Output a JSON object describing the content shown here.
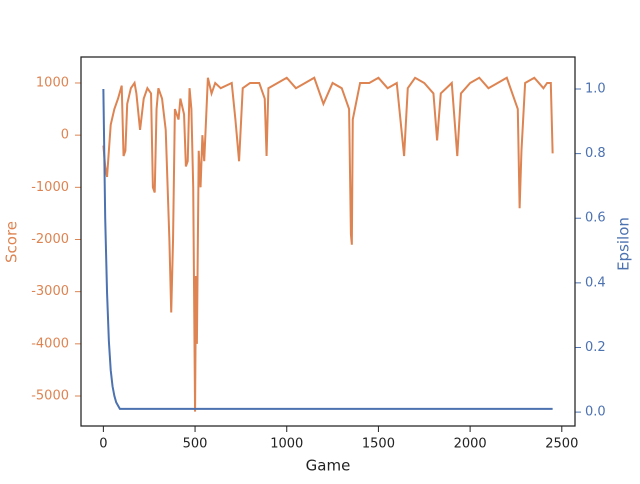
{
  "chart_data": {
    "type": "line",
    "xlabel": "Game",
    "ylabel": "Score",
    "y2label": "Epsilon",
    "xlim": [
      -122,
      2572
    ],
    "ylim": [
      -5575,
      1498
    ],
    "y2lim": [
      -0.043,
      1.099
    ],
    "xticks": [
      0,
      500,
      1000,
      1500,
      2000,
      2500
    ],
    "yticks": [
      -5000,
      -4000,
      -3000,
      -2000,
      -1000,
      0,
      1000
    ],
    "y2ticks": [
      {
        "value": 0,
        "label": "0.0"
      },
      0.2,
      0.4,
      0.6,
      0.8,
      {
        "value": 1,
        "label": "1.0"
      }
    ],
    "series": [
      {
        "name": "Score",
        "color": "#dd8452",
        "axis": "y",
        "x": [
          0,
          10,
          20,
          30,
          40,
          60,
          80,
          100,
          110,
          120,
          130,
          150,
          170,
          180,
          200,
          220,
          240,
          260,
          270,
          280,
          290,
          300,
          320,
          340,
          360,
          370,
          380,
          390,
          410,
          420,
          440,
          450,
          460,
          470,
          480,
          490,
          500,
          505,
          510,
          520,
          530,
          540,
          550,
          570,
          590,
          610,
          640,
          700,
          720,
          740,
          760,
          800,
          850,
          880,
          890,
          900,
          950,
          1000,
          1050,
          1100,
          1150,
          1200,
          1250,
          1300,
          1340,
          1350,
          1355,
          1360,
          1400,
          1450,
          1500,
          1550,
          1600,
          1640,
          1660,
          1700,
          1750,
          1800,
          1820,
          1840,
          1900,
          1930,
          1950,
          2000,
          2050,
          2100,
          2150,
          2200,
          2260,
          2270,
          2280,
          2300,
          2350,
          2400,
          2420,
          2440,
          2450
        ],
        "values": [
          -200,
          -600,
          -800,
          -300,
          200,
          500,
          700,
          950,
          -400,
          -300,
          600,
          900,
          1000,
          800,
          100,
          700,
          900,
          800,
          -1000,
          -1100,
          500,
          900,
          700,
          100,
          -2000,
          -3400,
          -2000,
          500,
          300,
          700,
          400,
          -600,
          -500,
          900,
          500,
          -1000,
          -5300,
          -2700,
          -4000,
          -300,
          -1000,
          0,
          -500,
          1100,
          800,
          1000,
          900,
          1000,
          300,
          -500,
          900,
          1000,
          1000,
          700,
          -400,
          900,
          1000,
          1100,
          900,
          1000,
          1100,
          600,
          1000,
          900,
          500,
          -1900,
          -2100,
          300,
          1000,
          1000,
          1100,
          900,
          1000,
          -400,
          900,
          1100,
          1000,
          800,
          -100,
          800,
          1000,
          -400,
          800,
          1000,
          1100,
          900,
          1000,
          1100,
          500,
          -1400,
          -300,
          1000,
          1100,
          900,
          1000,
          1000,
          -350
        ]
      },
      {
        "name": "Epsilon",
        "color": "#4c72b0",
        "axis": "y2",
        "x": [
          0,
          10,
          20,
          30,
          40,
          50,
          60,
          70,
          80,
          90,
          2450
        ],
        "values": [
          1.0,
          0.6,
          0.37,
          0.22,
          0.13,
          0.08,
          0.05,
          0.03,
          0.02,
          0.01,
          0.01
        ]
      }
    ]
  }
}
